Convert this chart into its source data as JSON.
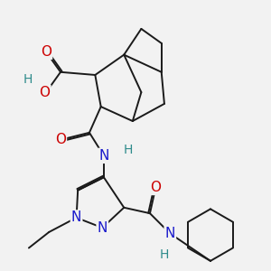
{
  "bg_color": "#f2f2f2",
  "bond_color": "#1a1a1a",
  "bond_width": 1.4,
  "atom_colors": {
    "O": "#cc0000",
    "N": "#1a1acc",
    "H": "#2e8b8b"
  },
  "font_size_atom": 11,
  "font_size_H": 10
}
